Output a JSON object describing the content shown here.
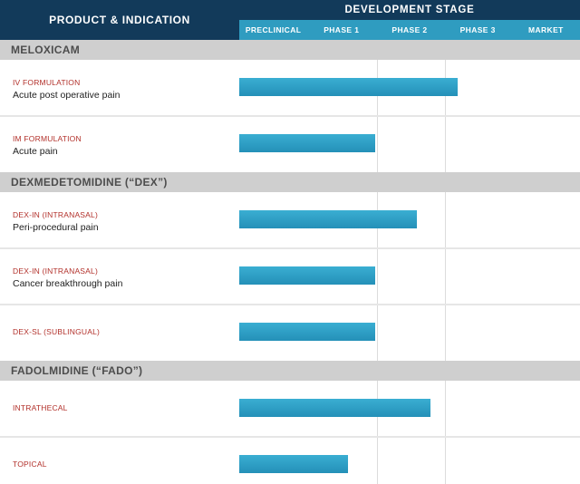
{
  "header": {
    "left_title": "PRODUCT & INDICATION",
    "right_title": "DEVELOPMENT STAGE"
  },
  "chart_data": {
    "type": "bar",
    "orientation": "horizontal",
    "stages": [
      "PRECLINICAL",
      "PHASE 1",
      "PHASE 2",
      "PHASE 3",
      "MARKET"
    ],
    "groups": [
      {
        "name": "MELOXICAM",
        "rows": [
          {
            "formulation": "IV FORMULATION",
            "indication": "Acute post operative pain",
            "progress": 3.2
          },
          {
            "formulation": "IM FORMULATION",
            "indication": "Acute pain",
            "progress": 2.0
          }
        ]
      },
      {
        "name": "DEXMEDETOMIDINE (“DEX”)",
        "rows": [
          {
            "formulation": "DEX-IN (INTRANASAL)",
            "indication": "Peri-procedural pain",
            "progress": 2.6
          },
          {
            "formulation": "DEX-IN (INTRANASAL)",
            "indication": "Cancer breakthrough pain",
            "progress": 2.0
          },
          {
            "formulation": "DEX-SL (SUBLINGUAL)",
            "indication": "",
            "progress": 2.0
          }
        ]
      },
      {
        "name": "FADOLMIDINE (“FADO”)",
        "rows": [
          {
            "formulation": "INTRATHECAL",
            "indication": "",
            "progress": 2.8
          },
          {
            "formulation": "TOPICAL",
            "indication": "",
            "progress": 1.6
          }
        ]
      }
    ]
  },
  "colors": {
    "header_dark": "#123a5a",
    "header_accent": "#2f9cc0",
    "bar": "#2f9cc0",
    "formulation_text": "#b2302a",
    "group_band": "#cfcfcf"
  }
}
